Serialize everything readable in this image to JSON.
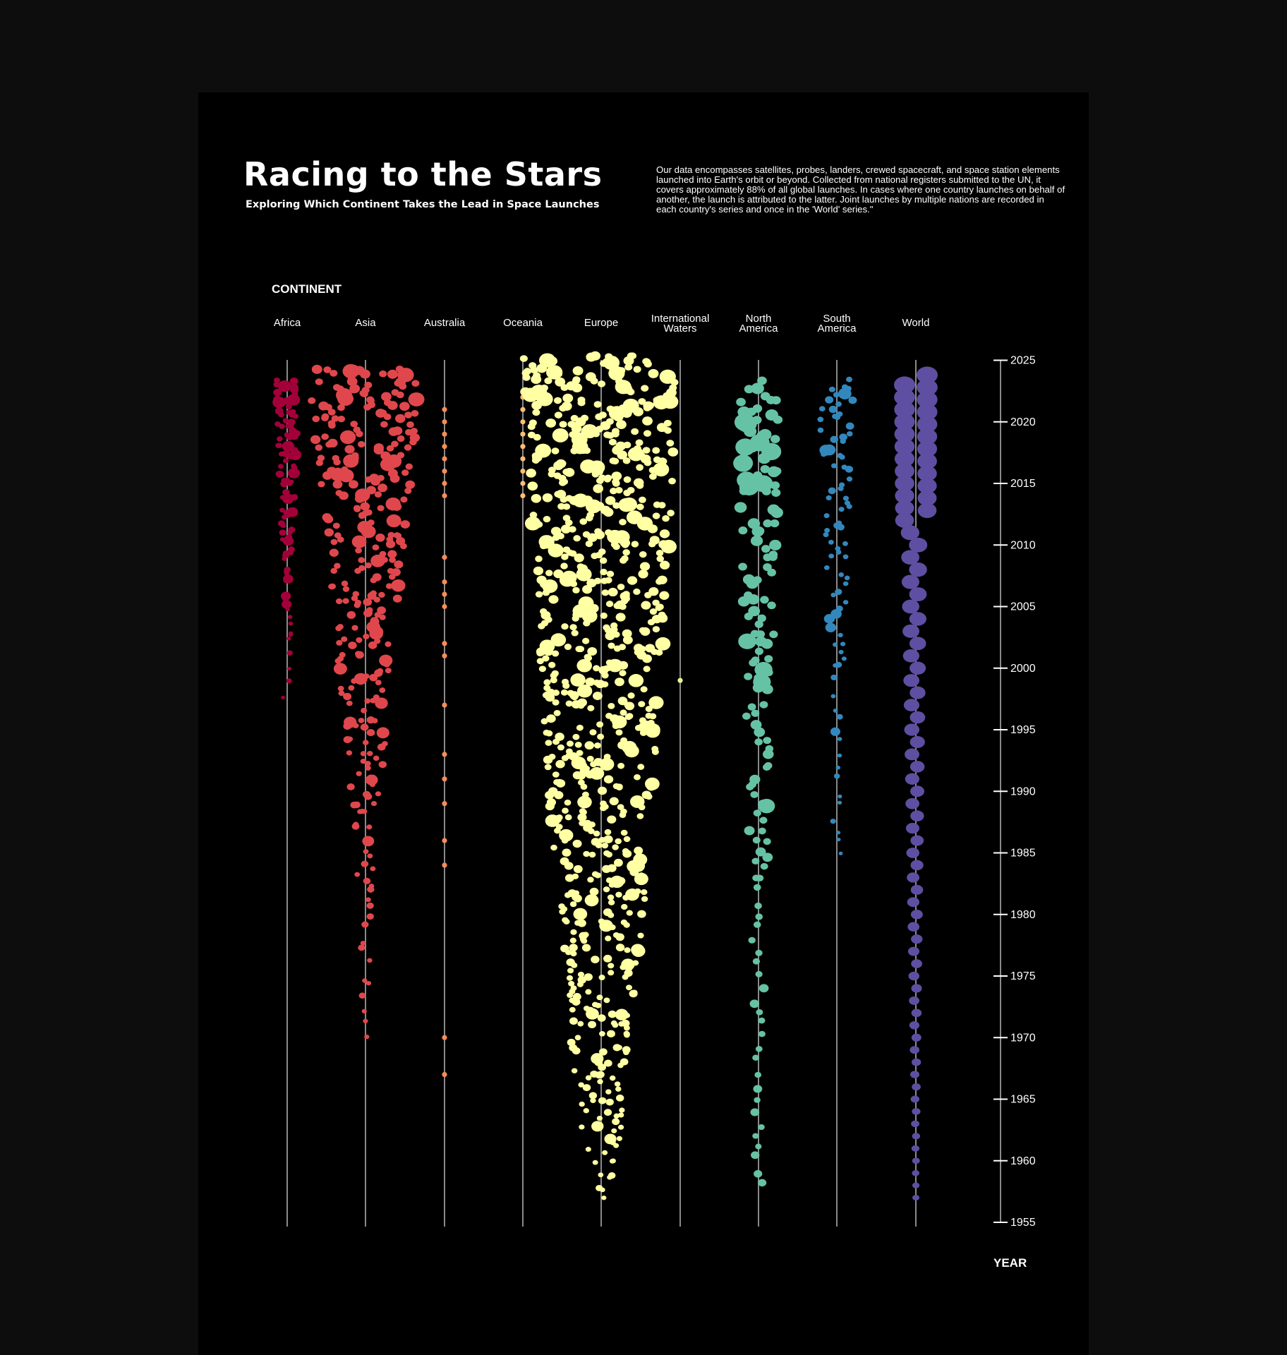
{
  "header": {
    "title": "Racing to the Stars",
    "subtitle": "Exploring Which Continent Takes the Lead in Space Launches",
    "description": "Our data encompasses satellites, probes, landers, crewed spacecraft, and space station elements launched into Earth's orbit or beyond. Collected from national registers submitted to the UN, it covers approximately 88% of all global launches. In cases where one country launches on behalf of another, the launch is attributed to the latter. Joint launches by multiple nations are recorded in each country's series and once in the 'World' series.\""
  },
  "chart_data": {
    "type": "scatter",
    "xlabel": "CONTINENT",
    "ylabel": "YEAR",
    "ylim": [
      1955,
      2025
    ],
    "y_ticks": [
      1955,
      1960,
      1965,
      1970,
      1975,
      1980,
      1985,
      1990,
      1995,
      2000,
      2005,
      2010,
      2015,
      2020,
      2025
    ],
    "categories": [
      "Africa",
      "Asia",
      "Australia",
      "Oceania",
      "Europe",
      "International Waters",
      "North America",
      "South America",
      "World"
    ],
    "series": [
      {
        "category": "Africa",
        "color": "#a3003a",
        "start_year": 1998,
        "end_year": 2023,
        "max_count": 8
      },
      {
        "category": "Asia",
        "color": "#e0474c",
        "start_year": 1970,
        "end_year": 2024,
        "max_count": 13
      },
      {
        "category": "Australia",
        "color": "#f88d52",
        "years": [
          1967,
          1970,
          1984,
          1986,
          1989,
          1991,
          1993,
          1997,
          2001,
          2002,
          2005,
          2006,
          2007,
          2009,
          2014,
          2015,
          2016,
          2017,
          2018,
          2019,
          2020,
          2021
        ]
      },
      {
        "category": "Oceania",
        "color": "#fdbf6f",
        "years": [
          2014,
          2015,
          2016,
          2017,
          2018,
          2019,
          2020,
          2021,
          2022
        ]
      },
      {
        "category": "Europe",
        "color": "#ffffa3",
        "start_year": 1957,
        "end_year": 2025,
        "max_count": 18
      },
      {
        "category": "International Waters",
        "color": "#e6f598",
        "years": [
          1999
        ]
      },
      {
        "category": "North America",
        "color": "#66c2a5",
        "start_year": 1958,
        "end_year": 2023,
        "max_count": 4
      },
      {
        "category": "South America",
        "color": "#3288bd",
        "start_year": 1985,
        "end_year": 2023,
        "max_count": 4
      },
      {
        "category": "World",
        "color": "#5e4fa2",
        "start_year": 1957,
        "end_year": 2023,
        "max_count": 2
      }
    ]
  }
}
